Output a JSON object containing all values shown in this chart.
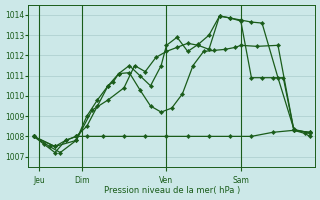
{
  "bg_color": "#cce8e8",
  "grid_color": "#aacccc",
  "line_color": "#1a5c1a",
  "marker_color": "#1a5c1a",
  "xlabel": "Pression niveau de la mer( hPa )",
  "xlabel_color": "#1a5c1a",
  "ylim": [
    1006.5,
    1014.5
  ],
  "yticks": [
    1007,
    1008,
    1009,
    1010,
    1011,
    1012,
    1013,
    1014
  ],
  "day_labels": [
    "Jeu",
    "Dim",
    "Ven",
    "Sam"
  ],
  "day_positions": [
    1,
    5,
    13,
    20
  ],
  "vline_positions": [
    1,
    5,
    13,
    20
  ],
  "xlim": [
    0,
    27
  ],
  "series": [
    {
      "x": [
        0.5,
        1.5,
        2.5,
        3.5,
        4.5,
        5.5,
        7,
        9,
        11,
        13,
        15,
        17,
        19,
        21,
        23,
        25,
        26.5
      ],
      "y": [
        1008.0,
        1007.6,
        1007.2,
        1007.8,
        1008.0,
        1008.0,
        1008.0,
        1008.0,
        1008.0,
        1008.0,
        1008.0,
        1008.0,
        1008.0,
        1008.0,
        1008.2,
        1008.3,
        1008.2
      ]
    },
    {
      "x": [
        0.5,
        2.5,
        4.5,
        5.5,
        6.5,
        7.5,
        8.0,
        8.5,
        9.5,
        10.5,
        11.5,
        12.5,
        13.5,
        14.5,
        15.5,
        16.5,
        17.5,
        18.5,
        19.5,
        20.0,
        21.5,
        23.5,
        25.0,
        26.5
      ],
      "y": [
        1008.0,
        1007.5,
        1007.8,
        1009.0,
        1009.8,
        1010.5,
        1010.7,
        1011.1,
        1011.15,
        1010.3,
        1009.5,
        1009.2,
        1009.4,
        1010.1,
        1011.5,
        1012.2,
        1012.25,
        1012.3,
        1012.4,
        1012.5,
        1012.45,
        1012.5,
        1008.3,
        1008.2
      ]
    },
    {
      "x": [
        0.5,
        2.5,
        3.5,
        4.5,
        5.5,
        6.5,
        7.5,
        8.5,
        9.5,
        10.5,
        11.5,
        12.5,
        13.0,
        14.0,
        15.0,
        16.0,
        17.0,
        18.0,
        19.0,
        20.0,
        21.0,
        22.0,
        23.0,
        24.0,
        25.0,
        26.0,
        26.5
      ],
      "y": [
        1008.0,
        1007.5,
        1007.8,
        1008.0,
        1008.5,
        1009.5,
        1010.5,
        1011.1,
        1011.5,
        1011.0,
        1010.5,
        1011.5,
        1012.5,
        1012.9,
        1012.2,
        1012.55,
        1013.0,
        1013.95,
        1013.85,
        1013.7,
        1010.9,
        1010.9,
        1010.9,
        1010.9,
        1008.3,
        1008.15,
        1008.0
      ]
    },
    {
      "x": [
        0.5,
        2.0,
        3.0,
        4.5,
        6.0,
        7.5,
        9.0,
        10.0,
        11.0,
        12.0,
        13.0,
        14.0,
        15.0,
        16.0,
        17.0,
        18.0,
        19.0,
        20.0,
        21.0,
        22.0,
        23.5,
        25.0,
        26.5
      ],
      "y": [
        1008.0,
        1007.5,
        1007.2,
        1007.8,
        1009.3,
        1009.8,
        1010.4,
        1011.5,
        1011.2,
        1011.9,
        1012.2,
        1012.4,
        1012.6,
        1012.5,
        1012.3,
        1013.95,
        1013.85,
        1013.75,
        1013.65,
        1013.6,
        1010.9,
        1008.35,
        1008.15
      ]
    }
  ],
  "vline_color": "#1a5c1a",
  "tick_color": "#1a5c1a",
  "spine_color": "#1a5c1a"
}
